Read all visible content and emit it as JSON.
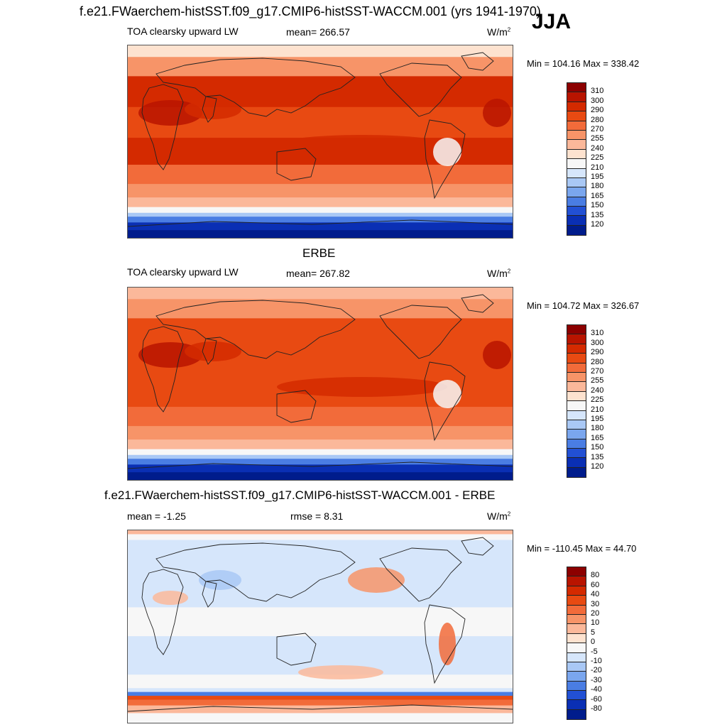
{
  "title": "f.e21.FWaerchem-histSST.f09_g17.CMIP6-histSST-WACCM.001 (yrs 1941-1970)",
  "season": "JJA",
  "panels": [
    {
      "label": "TOA clearsky upward LW",
      "mean": "mean= 266.57",
      "units": "W/m",
      "units_sup": "2",
      "minmax": "Min = 104.16 Max = 338.42",
      "kind": "abs"
    },
    {
      "header": "ERBE",
      "label": "TOA clearsky upward LW",
      "mean": "mean= 267.82",
      "units": "W/m",
      "units_sup": "2",
      "minmax": "Min = 104.72 Max = 326.67",
      "kind": "abs2"
    },
    {
      "header": "f.e21.FWaerchem-histSST.f09_g17.CMIP6-histSST-WACCM.001 - ERBE",
      "label": "mean =  -1.25",
      "mean": "rmse =   8.31",
      "units": "W/m",
      "units_sup": "2",
      "minmax": "Min = -110.45 Max =  44.70",
      "kind": "diff"
    }
  ],
  "colorbar_abs": {
    "labels": [
      "310",
      "300",
      "290",
      "280",
      "270",
      "255",
      "240",
      "225",
      "210",
      "195",
      "180",
      "165",
      "150",
      "135",
      "120"
    ],
    "colors": [
      "#8c0000",
      "#b81400",
      "#d42a00",
      "#e84a12",
      "#f26b3a",
      "#f79468",
      "#fbb89a",
      "#fde2cf",
      "#f7f7f7",
      "#d6e6fb",
      "#a9c8f5",
      "#7aa6ee",
      "#4a7de3",
      "#2250d4",
      "#0a2fb4",
      "#001c8c"
    ]
  },
  "colorbar_diff": {
    "labels": [
      "80",
      "60",
      "40",
      "30",
      "20",
      "10",
      "5",
      "0",
      "-5",
      "-10",
      "-20",
      "-30",
      "-40",
      "-60",
      "-80"
    ],
    "colors": [
      "#8c0000",
      "#b81400",
      "#d42a00",
      "#e84a12",
      "#f26b3a",
      "#f79468",
      "#fbb89a",
      "#fde2cf",
      "#f7f7f7",
      "#d6e6fb",
      "#a9c8f5",
      "#7aa6ee",
      "#4a7de3",
      "#2250d4",
      "#0a2fb4",
      "#001c8c"
    ]
  }
}
